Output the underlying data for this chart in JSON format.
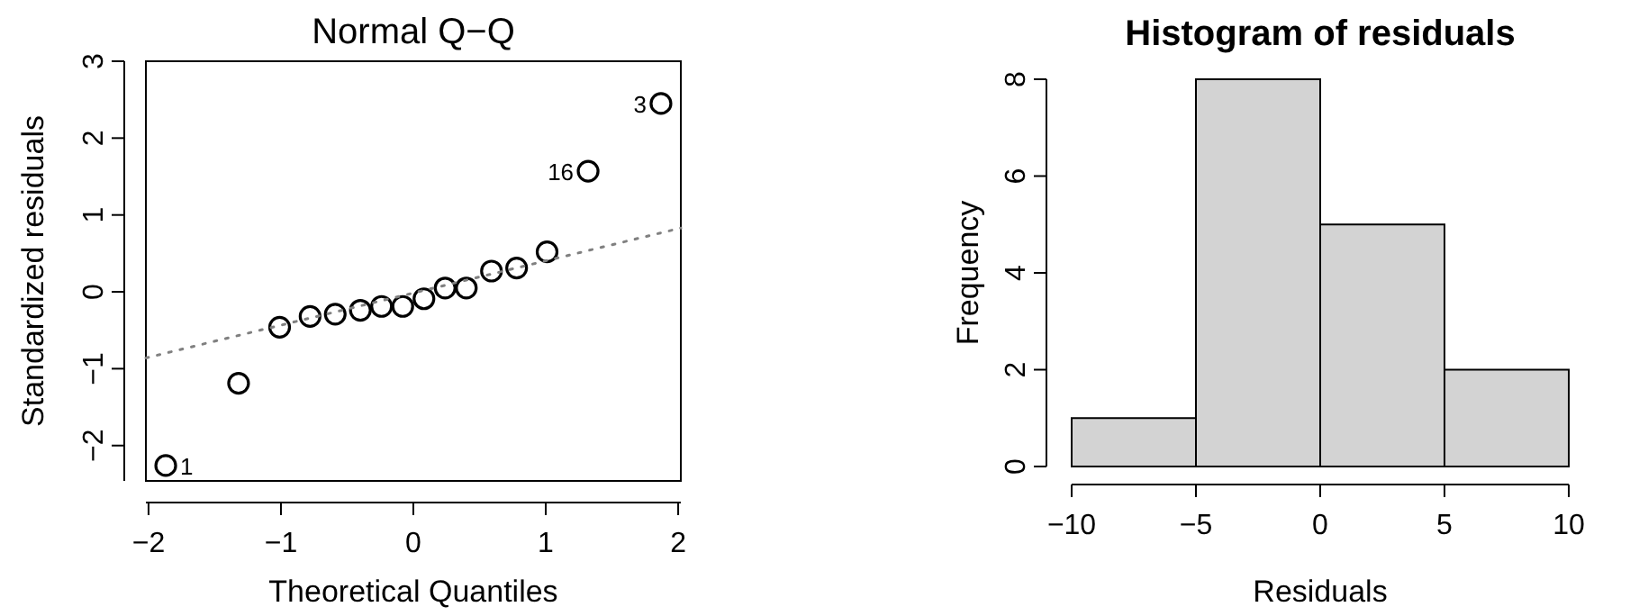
{
  "chart_data": [
    {
      "type": "scatter",
      "title": "Normal Q−Q",
      "xlabel": "Theoretical Quantiles",
      "ylabel": "Standardized residuals",
      "xlim": [
        -2.02,
        2.02
      ],
      "ylim": [
        -2.46,
        3.0
      ],
      "xticks": [
        {
          "value": -2,
          "label": "−2"
        },
        {
          "value": -1,
          "label": "−1"
        },
        0,
        1,
        2
      ],
      "yticks": [
        {
          "value": -2,
          "label": "−2"
        },
        {
          "value": -1,
          "label": "−1"
        },
        0,
        1,
        2,
        3
      ],
      "series": [
        {
          "type": "scatter",
          "marker": "circle",
          "color": "#000000",
          "x": [
            -1.87,
            -1.32,
            -1.01,
            -0.78,
            -0.59,
            -0.4,
            -0.24,
            -0.08,
            0.08,
            0.24,
            0.4,
            0.59,
            0.78,
            1.01,
            1.32,
            1.87
          ],
          "values": [
            -2.26,
            -1.19,
            -0.46,
            -0.32,
            -0.29,
            -0.24,
            -0.19,
            -0.19,
            -0.09,
            0.05,
            0.05,
            0.27,
            0.31,
            0.52,
            1.57,
            2.45
          ]
        },
        {
          "type": "line",
          "color": "#808080",
          "line_style": "dotted",
          "x": [
            -2.02,
            2.02
          ],
          "values": [
            -0.86,
            0.83
          ]
        }
      ],
      "annotations": [
        {
          "text": "1",
          "x": -1.87,
          "y": -2.26
        },
        {
          "text": "16",
          "x": 1.32,
          "y": 1.57
        },
        {
          "text": "3",
          "x": 1.87,
          "y": 2.45
        }
      ]
    },
    {
      "type": "histogram",
      "title": "Histogram of residuals",
      "xlabel": "Residuals",
      "ylabel": "Frequency",
      "color": "#d3d3d3",
      "bins": [
        -10,
        -5,
        0,
        5,
        10
      ],
      "values": [
        1,
        8,
        5,
        2
      ],
      "xlim": [
        -10,
        10
      ],
      "ylim": [
        0,
        8
      ],
      "xticks": [
        {
          "value": -10,
          "label": "−10"
        },
        {
          "value": -5,
          "label": "−5"
        },
        0,
        5,
        10
      ],
      "yticks": [
        0,
        2,
        4,
        6,
        8
      ]
    }
  ]
}
